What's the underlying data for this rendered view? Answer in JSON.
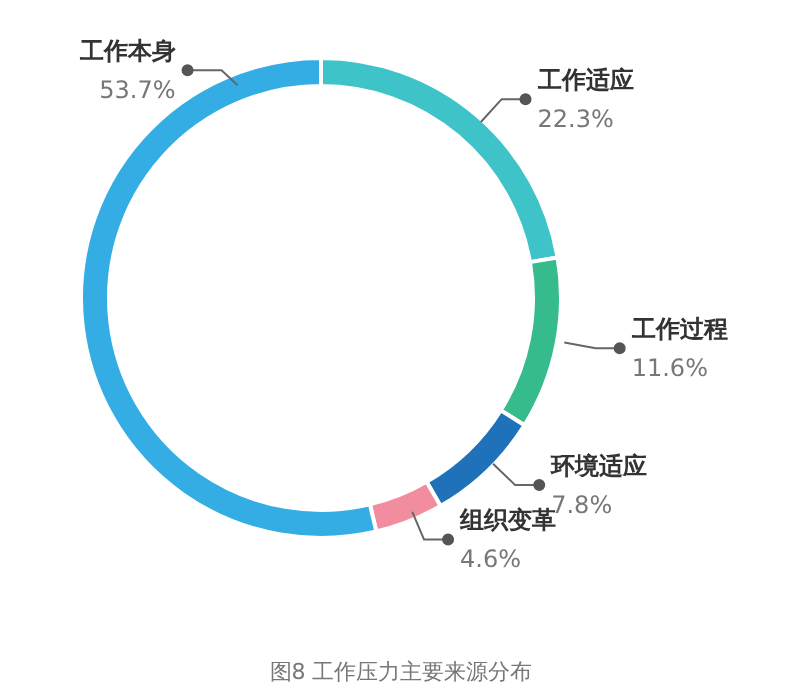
{
  "chart_data": {
    "type": "donut",
    "annotations": [
      "图8 工作压力主要来源分布"
    ],
    "categories": [
      "工作适应",
      "工作过程",
      "环境适应",
      "组织变革",
      "工作本身"
    ],
    "values": [
      22.3,
      11.6,
      7.8,
      4.6,
      53.7
    ],
    "value_labels": [
      "22.3%",
      "11.6%",
      "7.8%",
      "4.6%",
      "53.7%"
    ],
    "colors": [
      "#3ec3c9",
      "#36bb8c",
      "#1f72ba",
      "#f28d9f",
      "#33ade4"
    ]
  }
}
